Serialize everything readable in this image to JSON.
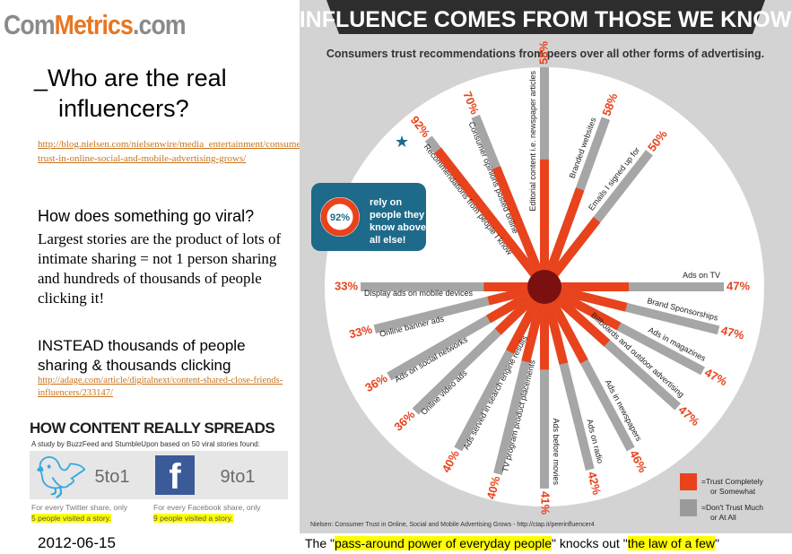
{
  "left": {
    "logo": {
      "part1": "Com",
      "part2": "Metrics",
      "part3": ".com"
    },
    "heading": {
      "line1": "_Who are the real",
      "line2": "influencers?"
    },
    "link1": "http://blog.nielsen.com/nielsenwire/media_entertainment/consumer-trust-in-online-social-and-mobile-advertising-grows/",
    "question": "How does something go viral?",
    "body1": "Largest stories are the product of lots of intimate sharing = not 1 person sharing and hundreds  of thousands of people clicking it!",
    "body2": "INSTEAD thousands of people sharing & thousands clicking",
    "link2": "http://adage.com/article/digitalnext/content-shared-close-friends-influencers/233147/",
    "spread": {
      "title": "HOW CONTENT REALLY SPREADS",
      "subtitle": "A study by BuzzFeed and StumbleUpon based on 50 viral stories found:",
      "twitter_ratio": "5to1",
      "twitter_note": "For every Twitter share, only",
      "twitter_highlight": "5 people visited a story.",
      "facebook_ratio": "9to1",
      "facebook_note": "For every Facebook share, only",
      "facebook_highlight": "9 people visited a story."
    },
    "date": "2012-06-15"
  },
  "infographic": {
    "title": "INFLUENCE COMES FROM THOSE WE KNOW",
    "subtitle": "Consumers trust recommendations from peers over all other forms of advertising.",
    "callout": {
      "pct": "92%",
      "text": [
        "rely on",
        "people they",
        "know above",
        "all else!"
      ]
    },
    "legend": [
      {
        "label": "=Trust Completely",
        "label2": "or Somewhat",
        "color": "#e8431c"
      },
      {
        "label": "=Don't Trust Much",
        "label2": "or At All",
        "color": "#9a9a9a"
      }
    ],
    "source": "Nielsen: Consumer Trust in Online, Social and Mobile Advertising Grows - http://ctap.it/peerinfluencer4",
    "spokes": [
      {
        "label": "Recommendations from people I know",
        "pct": "92%"
      },
      {
        "label": "Consumer opinions posted online",
        "pct": "70%"
      },
      {
        "label": "Editorial content i.e. newspaper articles",
        "pct": "58%"
      },
      {
        "label": "Branded websites",
        "pct": "58%"
      },
      {
        "label": "Emails I signed up for",
        "pct": "50%"
      },
      {
        "label": "Ads on TV",
        "pct": "47%"
      },
      {
        "label": "Brand Sponsorships",
        "pct": "47%"
      },
      {
        "label": "Ads in magazines",
        "pct": "47%"
      },
      {
        "label": "Billboards and outdoor advertising",
        "pct": "47%"
      },
      {
        "label": "Ads in newspapers",
        "pct": "46%"
      },
      {
        "label": "Ads on radio",
        "pct": "42%"
      },
      {
        "label": "Ads before movies",
        "pct": "41%"
      },
      {
        "label": "TV program product placements",
        "pct": "40%"
      },
      {
        "label": "Ads served in search engine results",
        "pct": "40%"
      },
      {
        "label": "Online video ads",
        "pct": "36%"
      },
      {
        "label": "Ads on social networks",
        "pct": "36%"
      },
      {
        "label": "Online banner ads",
        "pct": "33%"
      },
      {
        "label": "Display ads on mobile devices",
        "pct": "33%"
      }
    ]
  },
  "caption": {
    "p1": "The \"",
    "h1": "pass-around power of everyday people",
    "p2": "\" knocks out \"",
    "h2": "the law of a few",
    "p3": "\""
  }
}
